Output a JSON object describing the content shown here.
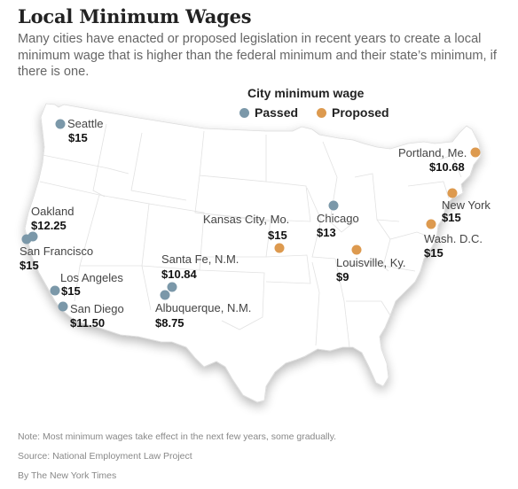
{
  "title": "Local Minimum Wages",
  "subtitle": "Many cities have enacted or proposed legislation in recent years to create a local minimum wage that is higher than the federal minimum and their state’s minimum, if there is one.",
  "legend": {
    "title": "City minimum wage",
    "passed_label": "Passed",
    "proposed_label": "Proposed"
  },
  "colors": {
    "passed": "#7b98a9",
    "proposed": "#dd9a4f",
    "land": "#ffffff",
    "state_border": "#e2e2e2"
  },
  "cities": [
    {
      "id": "seattle",
      "name": "Seattle",
      "wage": "$15",
      "status": "passed"
    },
    {
      "id": "oakland",
      "name": "Oakland",
      "wage": "$12.25",
      "status": "passed"
    },
    {
      "id": "san-francisco",
      "name": "San Francisco",
      "wage": "$15",
      "status": "passed"
    },
    {
      "id": "los-angeles",
      "name": "Los Angeles",
      "wage": "$15",
      "status": "passed"
    },
    {
      "id": "san-diego",
      "name": "San Diego",
      "wage": "$11.50",
      "status": "passed"
    },
    {
      "id": "santa-fe",
      "name": "Santa Fe, N.M.",
      "wage": "$10.84",
      "status": "passed"
    },
    {
      "id": "albuquerque",
      "name": "Albuquerque, N.M.",
      "wage": "$8.75",
      "status": "passed"
    },
    {
      "id": "kansas-city",
      "name": "Kansas City, Mo.",
      "wage": "$15",
      "status": "proposed"
    },
    {
      "id": "chicago",
      "name": "Chicago",
      "wage": "$13",
      "status": "passed"
    },
    {
      "id": "louisville",
      "name": "Louisville, Ky.",
      "wage": "$9",
      "status": "proposed"
    },
    {
      "id": "portland",
      "name": "Portland, Me.",
      "wage": "$10.68",
      "status": "proposed"
    },
    {
      "id": "new-york",
      "name": "New York",
      "wage": "$15",
      "status": "proposed"
    },
    {
      "id": "washington-dc",
      "name": "Wash. D.C.",
      "wage": "$15",
      "status": "proposed"
    }
  ],
  "footer": {
    "note": "Note: Most minimum wages take effect in the next few years, some gradually.",
    "source": "Source: National Employment Law Project",
    "credit": "By The New York Times"
  }
}
